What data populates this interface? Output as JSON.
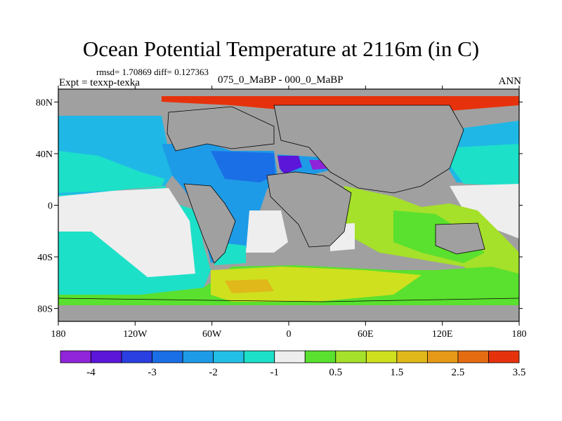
{
  "title": "Ocean Potential Temperature at 2116m (in C)",
  "stats": "rmsd= 1.70869 diff= 0.127363",
  "experiment": "Expt = texxp-texka",
  "difference_label": "075_0_MaBP - 000_0_MaBP",
  "season": "ANN",
  "colors": {
    "land": "#a0a0a0",
    "near_zero": "#eeeeee",
    "frame": "#000000"
  },
  "chart_data": {
    "type": "heatmap",
    "title": "Ocean Potential Temperature at 2116m (in C)",
    "field": "Ocean potential temperature difference",
    "units": "C",
    "depth": "2116m",
    "xlim": [
      -180,
      180
    ],
    "ylim": [
      -90,
      90
    ],
    "x_ticks": [
      {
        "value": -180,
        "label": "180"
      },
      {
        "value": -120,
        "label": "120W"
      },
      {
        "value": -60,
        "label": "60W"
      },
      {
        "value": 0,
        "label": "0"
      },
      {
        "value": 60,
        "label": "60E"
      },
      {
        "value": 120,
        "label": "120E"
      },
      {
        "value": 180,
        "label": "180"
      }
    ],
    "y_ticks": [
      {
        "value": 80,
        "label": "80N"
      },
      {
        "value": 40,
        "label": "40N"
      },
      {
        "value": 0,
        "label": "0"
      },
      {
        "value": -40,
        "label": "40S"
      },
      {
        "value": -80,
        "label": "80S"
      }
    ],
    "colorbar": {
      "colors": [
        "#8f24d9",
        "#5b16d9",
        "#2a3fe0",
        "#1b6fe6",
        "#1e9be6",
        "#22c0e6",
        "#1de0c8",
        "#eeeeee",
        "#5ae02e",
        "#a5e02a",
        "#cfe01e",
        "#e0b81a",
        "#e69a18",
        "#e66c12",
        "#e6320c"
      ],
      "labels": [
        "-4",
        "-3",
        "-2",
        "-1",
        "0.5",
        "1.5",
        "2.5",
        "3.5"
      ]
    },
    "regions": [
      {
        "name": "arctic-warm",
        "lon": [
          -180,
          180
        ],
        "lat": [
          80,
          90
        ],
        "class": "4"
      },
      {
        "name": "north-atlantic-cold",
        "lon": [
          -10,
          45
        ],
        "lat": [
          30,
          45
        ],
        "class": "-4"
      },
      {
        "name": "north-pacific",
        "lon": [
          -180,
          -100
        ],
        "lat": [
          20,
          60
        ],
        "class": "-1.5"
      },
      {
        "name": "atlantic-cool",
        "lon": [
          -90,
          0
        ],
        "lat": [
          -40,
          60
        ],
        "class": "-2"
      },
      {
        "name": "south-pacific-neutral",
        "lon": [
          -180,
          -100
        ],
        "lat": [
          -40,
          0
        ],
        "class": "0"
      },
      {
        "name": "indian-ocean-warm",
        "lon": [
          40,
          160
        ],
        "lat": [
          -40,
          20
        ],
        "class": "1.5"
      },
      {
        "name": "southern-ocean-warm",
        "lon": [
          -60,
          60
        ],
        "lat": [
          -75,
          -55
        ],
        "class": "2"
      }
    ]
  }
}
